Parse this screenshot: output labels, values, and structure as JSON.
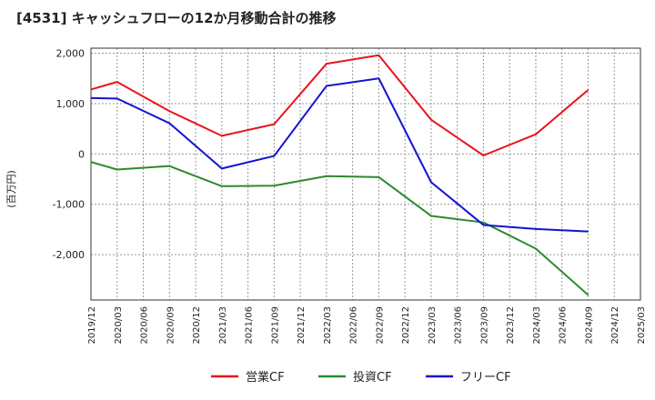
{
  "chart_data": {
    "type": "line",
    "title": "[4531]  キャッシュフローの12か月移動合計の推移",
    "ylabel": "(百万円)",
    "xlabel": "",
    "ylim": [
      -2900,
      2100
    ],
    "yticks": [
      2000,
      1000,
      0,
      -1000,
      -2000
    ],
    "ytick_labels": [
      "2,000",
      "1,000",
      "0",
      "-1,000",
      "-2,000"
    ],
    "categories": [
      "2019/12",
      "2020/03",
      "2020/06",
      "2020/09",
      "2020/12",
      "2021/03",
      "2021/06",
      "2021/09",
      "2021/12",
      "2022/03",
      "2022/06",
      "2022/09",
      "2022/12",
      "2023/03",
      "2023/06",
      "2023/09",
      "2023/12",
      "2024/03",
      "2024/06",
      "2024/09",
      "2024/12",
      "2025/03"
    ],
    "grid": true,
    "legend_position": "bottom",
    "series": [
      {
        "name": "営業CF",
        "color": "#e8141b",
        "values": [
          1280,
          1430,
          null,
          850,
          null,
          360,
          null,
          590,
          null,
          1790,
          null,
          1960,
          null,
          680,
          null,
          -30,
          null,
          390,
          null,
          1270,
          null,
          null
        ]
      },
      {
        "name": "投資CF",
        "color": "#2d8a2d",
        "values": [
          -160,
          -310,
          null,
          -240,
          null,
          -640,
          null,
          -630,
          null,
          -440,
          null,
          -460,
          null,
          -1230,
          null,
          -1360,
          null,
          -1880,
          null,
          -2800,
          null,
          null
        ]
      },
      {
        "name": "フリーCF",
        "color": "#1414d0",
        "values": [
          1110,
          1100,
          null,
          610,
          null,
          -290,
          null,
          -40,
          null,
          1350,
          null,
          1500,
          null,
          -560,
          null,
          -1410,
          null,
          -1490,
          null,
          -1540,
          null,
          null
        ]
      }
    ]
  }
}
